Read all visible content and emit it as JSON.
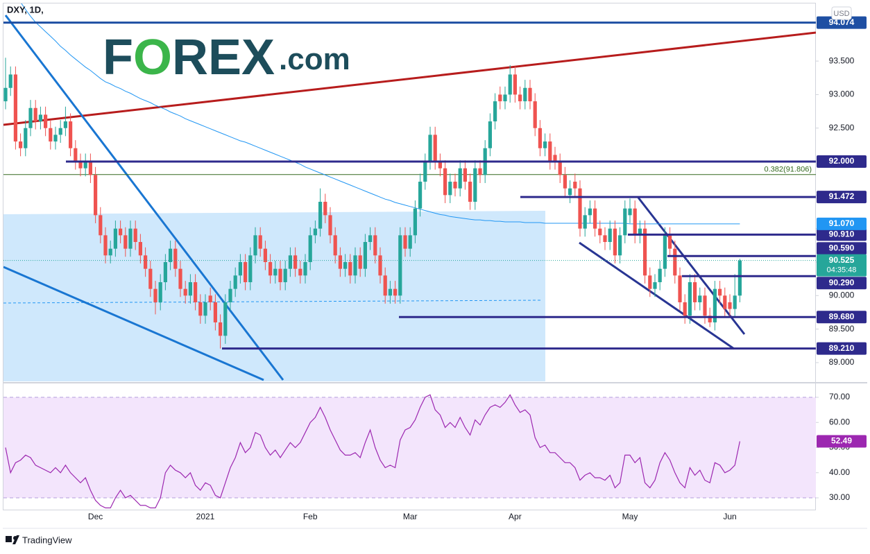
{
  "logo": [
    "F",
    "O",
    "REX",
    ".com"
  ],
  "footer": "TradingView",
  "chart_data": [
    {
      "type": "candlestick",
      "title": "DXY, 1D,",
      "currency": "USD",
      "categories": [
        null,
        null,
        null,
        null,
        null,
        null,
        null,
        null,
        null,
        null,
        null,
        null,
        null,
        null,
        null,
        null,
        null,
        null,
        "Dec",
        null,
        null,
        null,
        null,
        null,
        null,
        null,
        null,
        null,
        null,
        null,
        null,
        null,
        null,
        null,
        null,
        null,
        null,
        null,
        null,
        null,
        "2021",
        null,
        null,
        null,
        null,
        null,
        null,
        null,
        null,
        null,
        null,
        null,
        null,
        null,
        null,
        null,
        null,
        null,
        null,
        null,
        null,
        "Feb",
        null,
        null,
        null,
        null,
        null,
        null,
        null,
        null,
        null,
        null,
        null,
        null,
        null,
        null,
        null,
        null,
        null,
        null,
        null,
        "Mar",
        null,
        null,
        null,
        null,
        null,
        null,
        null,
        null,
        null,
        null,
        null,
        null,
        null,
        null,
        null,
        null,
        null,
        null,
        null,
        null,
        "Apr",
        null,
        null,
        null,
        null,
        null,
        null,
        null,
        null,
        null,
        null,
        null,
        null,
        null,
        null,
        null,
        null,
        null,
        null,
        null,
        null,
        null,
        null,
        "May",
        null,
        null,
        null,
        null,
        null,
        null,
        null,
        null,
        null,
        null,
        null,
        null,
        null,
        null,
        null,
        null,
        null,
        null,
        null,
        "Jun",
        null,
        null
      ],
      "open": [
        92.9,
        93.1,
        93.3,
        92.3,
        92.2,
        92.5,
        92.8,
        92.6,
        92.7,
        92.5,
        92.3,
        92.4,
        92.5,
        92.6,
        92.2,
        92.0,
        91.9,
        92.0,
        91.8,
        91.2,
        90.9,
        90.6,
        90.7,
        91.0,
        90.9,
        90.7,
        91.0,
        90.8,
        90.6,
        90.4,
        90.1,
        89.9,
        90.2,
        90.5,
        90.7,
        90.4,
        90.1,
        90.0,
        90.2,
        89.9,
        89.7,
        90.0,
        89.9,
        89.6,
        89.4,
        89.9,
        90.1,
        90.3,
        90.5,
        90.2,
        90.6,
        90.9,
        90.7,
        90.5,
        90.3,
        90.4,
        90.2,
        90.4,
        90.6,
        90.4,
        90.3,
        90.5,
        90.9,
        91.0,
        91.4,
        91.2,
        90.9,
        90.6,
        90.4,
        90.5,
        90.3,
        90.6,
        90.4,
        90.8,
        90.9,
        90.6,
        90.3,
        90.0,
        90.1,
        90.0,
        90.9,
        90.7,
        90.9,
        91.3,
        91.7,
        92.0,
        92.4,
        92.0,
        91.9,
        91.5,
        91.7,
        91.6,
        91.9,
        91.7,
        91.4,
        91.9,
        91.8,
        92.2,
        92.6,
        93.0,
        92.9,
        93.0,
        93.3,
        93.0,
        92.9,
        93.1,
        92.9,
        92.5,
        92.2,
        92.3,
        92.1,
        92.0,
        91.8,
        91.5,
        91.7,
        91.6,
        91.0,
        91.2,
        91.3,
        91.0,
        90.9,
        90.8,
        91.0,
        90.6,
        90.9,
        91.2,
        91.3,
        90.9,
        91.0,
        90.3,
        90.1,
        90.2,
        90.4,
        90.9,
        90.7,
        90.3,
        89.9,
        89.7,
        90.2,
        89.9,
        90.0,
        89.7,
        89.6,
        90.1,
        90.0,
        89.9,
        89.8,
        90.0
      ],
      "high": [
        93.55,
        93.42,
        93.42,
        92.42,
        92.62,
        92.92,
        92.92,
        92.82,
        92.82,
        92.62,
        92.52,
        92.62,
        92.82,
        92.72,
        92.32,
        92.12,
        92.12,
        92.12,
        91.92,
        91.32,
        91.02,
        90.82,
        91.12,
        91.12,
        91.02,
        91.12,
        91.12,
        90.92,
        90.72,
        90.52,
        90.22,
        90.32,
        90.62,
        90.82,
        90.82,
        90.52,
        90.22,
        90.32,
        90.32,
        90.02,
        90.02,
        90.12,
        90.02,
        89.72,
        90.02,
        90.22,
        90.42,
        90.62,
        90.62,
        90.72,
        91.02,
        91.02,
        90.82,
        90.62,
        90.52,
        90.52,
        90.52,
        90.72,
        90.72,
        90.52,
        90.62,
        91.02,
        91.12,
        91.6,
        91.52,
        91.32,
        91.02,
        90.72,
        90.62,
        90.62,
        90.72,
        90.72,
        90.92,
        91.02,
        91.02,
        90.72,
        90.42,
        90.22,
        90.22,
        91.02,
        91.02,
        91.02,
        91.42,
        91.82,
        92.12,
        92.52,
        92.52,
        92.12,
        92.02,
        91.82,
        91.82,
        92.02,
        92.02,
        91.82,
        92.02,
        92.02,
        92.32,
        92.72,
        93.02,
        93.12,
        93.12,
        93.44,
        93.42,
        93.12,
        93.22,
        93.22,
        93.02,
        92.62,
        92.42,
        92.42,
        92.22,
        92.12,
        91.92,
        91.72,
        91.82,
        91.72,
        91.32,
        91.42,
        91.42,
        91.12,
        91.02,
        91.12,
        91.12,
        91.02,
        91.42,
        91.45,
        91.42,
        91.12,
        91.12,
        90.42,
        90.32,
        90.52,
        91.02,
        91.02,
        90.82,
        90.42,
        90.02,
        90.32,
        90.32,
        90.12,
        90.12,
        89.82,
        90.22,
        90.22,
        90.12,
        90.02,
        90.32,
        90.55
      ],
      "low": [
        92.78,
        92.98,
        92.18,
        92.08,
        92.08,
        92.38,
        92.48,
        92.48,
        92.38,
        92.18,
        92.18,
        92.28,
        92.38,
        92.08,
        91.88,
        91.78,
        91.78,
        91.68,
        91.08,
        90.78,
        90.48,
        90.48,
        90.58,
        90.78,
        90.58,
        90.58,
        90.68,
        90.48,
        90.28,
        89.98,
        89.72,
        89.78,
        90.08,
        90.38,
        90.28,
        89.98,
        89.88,
        89.88,
        89.78,
        89.58,
        89.58,
        89.78,
        89.48,
        89.21,
        89.28,
        89.78,
        89.98,
        90.18,
        90.08,
        90.08,
        90.48,
        90.58,
        90.38,
        90.18,
        90.18,
        90.08,
        90.08,
        90.28,
        90.28,
        90.18,
        90.18,
        90.38,
        90.78,
        90.88,
        91.08,
        90.78,
        90.48,
        90.28,
        90.28,
        90.18,
        90.18,
        90.28,
        90.28,
        90.68,
        90.48,
        90.18,
        89.88,
        89.88,
        89.88,
        89.88,
        90.58,
        90.58,
        90.78,
        91.18,
        91.58,
        91.88,
        91.88,
        91.78,
        91.38,
        91.38,
        91.48,
        91.48,
        91.58,
        91.28,
        91.28,
        91.68,
        91.68,
        92.08,
        92.48,
        92.78,
        92.78,
        92.88,
        92.88,
        92.78,
        92.78,
        92.78,
        92.38,
        92.08,
        92.08,
        91.88,
        91.88,
        91.68,
        91.48,
        91.38,
        91.48,
        90.88,
        90.88,
        91.08,
        90.88,
        90.78,
        90.68,
        90.68,
        90.48,
        90.48,
        90.78,
        91.08,
        90.78,
        90.78,
        90.18,
        89.98,
        89.98,
        90.08,
        90.28,
        90.58,
        90.18,
        89.78,
        89.58,
        89.58,
        89.78,
        89.78,
        89.58,
        89.53,
        89.48,
        89.88,
        89.68,
        89.68,
        89.68,
        89.9
      ],
      "close": [
        93.1,
        93.3,
        92.3,
        92.2,
        92.5,
        92.8,
        92.6,
        92.7,
        92.5,
        92.3,
        92.4,
        92.5,
        92.6,
        92.2,
        92.0,
        91.9,
        92.0,
        91.8,
        91.2,
        90.9,
        90.6,
        90.7,
        91.0,
        90.9,
        90.7,
        91.0,
        90.8,
        90.6,
        90.4,
        90.1,
        89.9,
        90.2,
        90.5,
        90.7,
        90.4,
        90.1,
        90.0,
        90.2,
        89.9,
        89.7,
        89.9,
        89.9,
        89.6,
        89.4,
        89.9,
        90.1,
        90.3,
        90.5,
        90.2,
        90.6,
        90.9,
        90.7,
        90.5,
        90.3,
        90.4,
        90.2,
        90.4,
        90.6,
        90.4,
        90.3,
        90.5,
        90.9,
        91.0,
        91.4,
        91.2,
        90.9,
        90.6,
        90.4,
        90.5,
        90.3,
        90.6,
        90.4,
        90.8,
        90.9,
        90.6,
        90.3,
        90.0,
        90.1,
        90.0,
        90.9,
        90.7,
        90.9,
        91.3,
        91.7,
        92.0,
        92.4,
        92.0,
        91.9,
        91.5,
        91.7,
        91.6,
        91.9,
        91.7,
        91.4,
        91.9,
        91.8,
        92.2,
        92.6,
        92.9,
        92.9,
        93.0,
        93.3,
        93.0,
        92.9,
        93.1,
        92.9,
        92.5,
        92.2,
        92.3,
        92.0,
        92.0,
        91.8,
        91.6,
        91.6,
        91.6,
        91.0,
        91.2,
        91.3,
        91.0,
        90.9,
        90.8,
        91.0,
        90.6,
        90.9,
        91.3,
        91.3,
        90.9,
        91.0,
        90.3,
        90.1,
        90.2,
        90.4,
        90.9,
        90.7,
        90.3,
        89.9,
        89.7,
        90.2,
        89.9,
        90.0,
        89.7,
        89.6,
        90.1,
        90.0,
        89.8,
        89.8,
        90.0,
        90.525
      ],
      "up_color": "#26a69a",
      "down_color": "#ef5350",
      "sma": [
        null,
        null,
        null,
        94.38,
        94.27,
        94.17,
        94.08,
        94.01,
        93.94,
        93.87,
        93.8,
        93.72,
        93.66,
        93.59,
        93.53,
        93.47,
        93.41,
        93.36,
        93.3,
        93.24,
        93.19,
        93.16,
        93.12,
        93.09,
        93.05,
        93.02,
        92.98,
        92.94,
        92.91,
        92.88,
        92.84,
        92.81,
        92.78,
        92.74,
        92.71,
        92.68,
        92.64,
        92.61,
        92.58,
        92.55,
        92.52,
        92.49,
        92.46,
        92.43,
        92.4,
        92.37,
        92.34,
        92.31,
        92.29,
        92.26,
        92.23,
        92.2,
        92.17,
        92.14,
        92.11,
        92.08,
        92.05,
        92.02,
        91.99,
        91.96,
        91.92,
        91.89,
        91.86,
        91.83,
        91.8,
        91.77,
        91.74,
        91.71,
        91.68,
        91.65,
        91.62,
        91.59,
        91.56,
        91.53,
        91.5,
        91.47,
        91.44,
        91.42,
        91.39,
        91.37,
        91.35,
        91.33,
        91.31,
        91.29,
        91.27,
        91.25,
        91.23,
        91.21,
        91.2,
        91.18,
        91.17,
        91.16,
        91.15,
        91.14,
        91.13,
        91.13,
        91.12,
        91.12,
        91.11,
        91.11,
        91.1,
        91.1,
        91.1,
        91.1,
        91.09,
        91.09,
        91.09,
        91.09,
        91.08,
        91.08,
        91.08,
        91.08,
        91.08,
        91.08,
        91.08,
        91.08,
        91.08,
        91.08,
        91.08,
        91.08,
        91.08,
        91.08,
        91.08,
        91.08,
        91.08,
        91.07,
        91.07,
        91.07,
        91.07,
        91.07,
        91.07,
        91.07,
        91.07,
        91.07,
        91.07,
        91.07,
        91.07,
        91.07,
        91.07,
        91.07,
        91.07,
        91.07,
        91.07,
        91.07,
        91.07,
        91.07,
        91.07,
        91.07
      ],
      "sma_color": "#2196f3",
      "sma_label": "91.070",
      "levels": [
        {
          "value": 94.074,
          "label": "94.074",
          "color": "#1e4fa3"
        },
        {
          "value": 92.0,
          "label": "92.000",
          "color": "#2e2a8c"
        },
        {
          "value": 91.472,
          "label": "91.472",
          "color": "#2e2a8c"
        },
        {
          "value": 90.91,
          "label": "90.910",
          "color": "#2e2a8c"
        },
        {
          "value": 90.59,
          "label": "90.590",
          "color": "#2e2a8c"
        },
        {
          "value": 90.29,
          "label": "90.290",
          "color": "#2e2a8c"
        },
        {
          "value": 89.68,
          "label": "89.680",
          "color": "#2e2a8c"
        },
        {
          "value": 89.21,
          "label": "89.210",
          "color": "#2e2a8c"
        }
      ],
      "fib": {
        "value": 91.806,
        "label": "0.382(91.806)",
        "color": "#33691e"
      },
      "last_label": "90.525",
      "countdown": "04:35:48",
      "ylim": [
        88.72,
        94.36
      ],
      "yticks": [
        {
          "value": 89,
          "label": "89.000"
        },
        {
          "value": 89.5,
          "label": "89.500"
        },
        {
          "value": 90,
          "label": "90.000"
        },
        {
          "value": 90.5,
          "label": "90.500"
        },
        {
          "value": 91,
          "label": "91.000"
        },
        {
          "value": 91.5,
          "label": "91.500"
        },
        {
          "value": 92,
          "label": "92.000"
        },
        {
          "value": 92.5,
          "label": "92.500"
        },
        {
          "value": 93,
          "label": "93.000"
        },
        {
          "value": 93.5,
          "label": "93.500"
        }
      ],
      "grid": false
    },
    {
      "type": "line",
      "values": [
        50,
        40,
        44,
        45,
        47,
        46,
        43,
        42,
        41,
        40,
        42,
        40,
        43,
        40,
        38,
        36,
        38,
        33,
        29,
        27,
        26,
        26,
        30,
        33,
        30,
        31,
        29,
        27,
        27,
        26,
        26,
        30,
        40,
        43,
        41,
        40,
        38,
        40,
        35,
        33,
        36,
        35,
        31,
        30,
        36,
        42,
        46,
        52,
        48,
        50,
        56,
        55,
        50,
        47,
        49,
        46,
        49,
        52,
        50,
        52,
        56,
        60,
        62,
        66,
        62,
        57,
        53,
        49,
        47,
        47,
        48,
        46,
        52,
        57,
        50,
        45,
        42,
        43,
        42,
        53,
        57,
        58,
        61,
        66,
        70,
        71,
        65,
        63,
        58,
        60,
        58,
        62,
        58,
        55,
        61,
        59,
        63,
        66,
        67,
        66,
        68,
        71,
        67,
        64,
        65,
        63,
        54,
        50,
        51,
        48,
        48,
        46,
        44,
        44,
        42,
        37,
        39,
        40,
        38,
        38,
        37,
        39,
        34,
        36,
        47,
        47,
        44,
        46,
        36,
        34,
        37,
        44,
        48,
        45,
        40,
        36,
        34,
        42,
        39,
        41,
        37,
        36,
        44,
        43,
        40,
        41,
        43,
        52.49
      ],
      "color": "#9c27b0",
      "band": [
        30,
        70
      ],
      "band_color": "#f3e5fc",
      "last_label": "52.49",
      "ylim": [
        25.31,
        73.59
      ],
      "yticks": [
        {
          "value": 30,
          "label": "30.00"
        },
        {
          "value": 40,
          "label": "40.00"
        },
        {
          "value": 50,
          "label": "50.00"
        },
        {
          "value": 60,
          "label": "60.00"
        },
        {
          "value": 70,
          "label": "70.00"
        }
      ],
      "grid": false
    }
  ]
}
